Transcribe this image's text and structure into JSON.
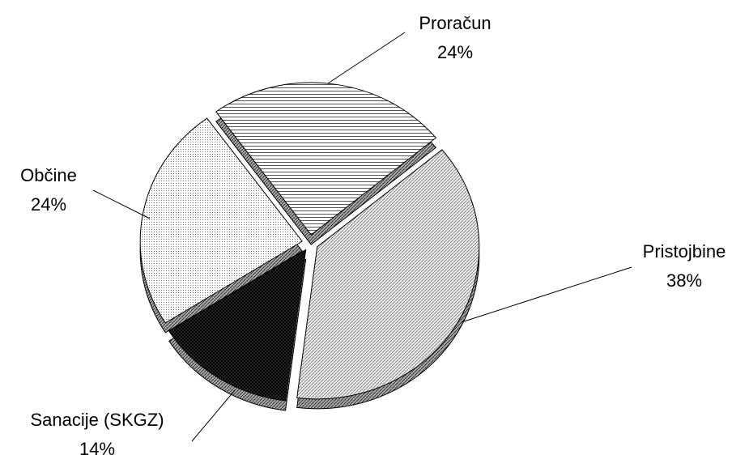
{
  "chart_data": {
    "type": "pie",
    "categories": [
      "Proračun",
      "Pristojbine",
      "Sanacije (SKGZ)",
      "Občine"
    ],
    "values": [
      24,
      38,
      14,
      24
    ],
    "value_labels": [
      "24%",
      "38%",
      "14%",
      "24%"
    ]
  }
}
